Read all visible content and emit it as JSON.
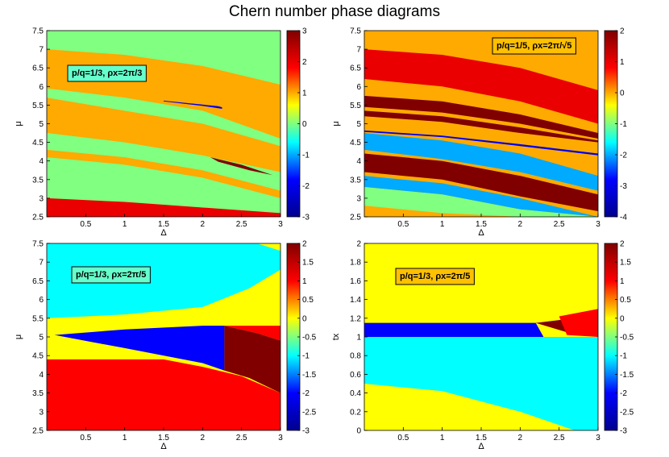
{
  "title": "Chern number phase diagrams",
  "colormap_stops": [
    "#00008f",
    "#0000ff",
    "#00ffff",
    "#ffff00",
    "#ff0000",
    "#800000"
  ],
  "chart_data": [
    {
      "type": "heatmap",
      "panel": "top-left",
      "annotation": "p/q=1/3, ρx=2π/3",
      "xlabel": "Δ",
      "ylabel": "μ",
      "xlim": [
        0,
        3
      ],
      "ylim": [
        2.5,
        7.5
      ],
      "xticks": [
        0.5,
        1,
        1.5,
        2,
        2.5,
        3
      ],
      "yticks": [
        2.5,
        3,
        3.5,
        4,
        4.5,
        5,
        5.5,
        6,
        6.5,
        7,
        7.5
      ],
      "clim": [
        -3,
        3
      ],
      "cticks": [
        -3,
        -2,
        -1,
        0,
        1,
        2,
        3
      ],
      "background_value": 0,
      "regions": [
        {
          "value": 1,
          "top": [
            [
              0,
              7.0
            ],
            [
              1,
              6.85
            ],
            [
              2,
              6.55
            ],
            [
              3,
              6.05
            ]
          ],
          "bottom": [
            [
              0,
              5.95
            ],
            [
              1,
              5.7
            ],
            [
              2,
              5.35
            ],
            [
              3,
              4.6
            ]
          ]
        },
        {
          "value": 1,
          "top": [
            [
              0,
              5.7
            ],
            [
              1,
              5.35
            ],
            [
              2,
              5.0
            ],
            [
              3,
              4.4
            ]
          ],
          "bottom": [
            [
              0,
              4.75
            ],
            [
              1,
              4.5
            ],
            [
              2,
              4.15
            ],
            [
              3,
              3.7
            ]
          ]
        },
        {
          "value": 1,
          "top": [
            [
              0,
              4.3
            ],
            [
              1,
              4.1
            ],
            [
              2,
              3.75
            ],
            [
              3,
              3.2
            ]
          ],
          "bottom": [
            [
              0,
              4.1
            ],
            [
              1,
              3.9
            ],
            [
              2,
              3.55
            ],
            [
              3,
              3.0
            ]
          ]
        },
        {
          "value": 2,
          "top": [
            [
              0,
              3.0
            ],
            [
              1,
              2.9
            ],
            [
              2,
              2.75
            ],
            [
              3,
              2.6
            ]
          ],
          "bottom": [
            [
              0,
              2.5
            ],
            [
              3,
              2.5
            ]
          ]
        },
        {
          "value": -2,
          "top": [
            [
              1.5,
              5.62
            ],
            [
              2.2,
              5.47
            ],
            [
              2.25,
              5.44
            ]
          ],
          "bottom": [
            [
              1.5,
              5.6
            ],
            [
              2.0,
              5.48
            ],
            [
              2.25,
              5.4
            ]
          ]
        },
        {
          "value": 3,
          "top": [
            [
              2.1,
              4.1
            ],
            [
              2.5,
              3.9
            ],
            [
              2.9,
              3.62
            ]
          ],
          "bottom": [
            [
              2.2,
              3.98
            ],
            [
              2.6,
              3.75
            ],
            [
              2.9,
              3.62
            ]
          ]
        }
      ]
    },
    {
      "type": "heatmap",
      "panel": "top-right",
      "annotation": "p/q=1/5, ρx=2π/√5",
      "xlabel": "Δ",
      "ylabel": "μ",
      "xlim": [
        0,
        3
      ],
      "ylim": [
        2.5,
        7.5
      ],
      "xticks": [
        0.5,
        1,
        1.5,
        2,
        2.5,
        3
      ],
      "yticks": [
        2.5,
        3,
        3.5,
        4,
        4.5,
        5,
        5.5,
        6,
        6.5,
        7,
        7.5
      ],
      "clim": [
        -4,
        2
      ],
      "cticks": [
        -4,
        -3,
        -2,
        -1,
        0,
        1,
        2
      ],
      "background_value": 0,
      "regions": [
        {
          "value": 1,
          "top": [
            [
              0,
              7.0
            ],
            [
              1,
              6.85
            ],
            [
              2,
              6.5
            ],
            [
              3,
              5.9
            ]
          ],
          "bottom": [
            [
              0,
              6.2
            ],
            [
              1,
              6.0
            ],
            [
              2,
              5.6
            ],
            [
              3,
              5.0
            ]
          ]
        },
        {
          "value": 2,
          "top": [
            [
              0,
              5.75
            ],
            [
              1,
              5.6
            ],
            [
              2,
              5.25
            ],
            [
              3,
              4.75
            ]
          ],
          "bottom": [
            [
              0,
              5.45
            ],
            [
              1,
              5.3
            ],
            [
              2,
              5.0
            ],
            [
              3,
              4.6
            ]
          ]
        },
        {
          "value": 2,
          "top": [
            [
              0,
              5.35
            ],
            [
              1,
              5.2
            ],
            [
              2,
              4.9
            ],
            [
              3,
              4.55
            ]
          ],
          "bottom": [
            [
              0,
              5.2
            ],
            [
              1,
              5.05
            ],
            [
              2,
              4.75
            ],
            [
              3,
              4.5
            ]
          ]
        },
        {
          "value": -2,
          "top": [
            [
              0,
              4.75
            ],
            [
              1,
              4.55
            ],
            [
              2,
              4.2
            ],
            [
              3,
              3.6
            ]
          ],
          "bottom": [
            [
              0,
              4.3
            ],
            [
              1,
              4.05
            ],
            [
              2,
              3.7
            ],
            [
              3,
              3.2
            ]
          ]
        },
        {
          "value": -3,
          "top": [
            [
              0,
              4.82
            ],
            [
              1,
              4.68
            ],
            [
              2,
              4.45
            ],
            [
              3,
              4.2
            ]
          ],
          "bottom": [
            [
              0,
              4.78
            ],
            [
              1,
              4.64
            ],
            [
              2,
              4.4
            ],
            [
              3,
              4.15
            ]
          ]
        },
        {
          "value": 2,
          "top": [
            [
              0,
              4.2
            ],
            [
              1,
              4.0
            ],
            [
              2,
              3.6
            ],
            [
              3,
              3.1
            ]
          ],
          "bottom": [
            [
              0,
              3.7
            ],
            [
              1,
              3.5
            ],
            [
              2,
              3.05
            ],
            [
              3,
              2.65
            ]
          ]
        },
        {
          "value": -2,
          "top": [
            [
              0,
              3.6
            ],
            [
              1,
              3.4
            ],
            [
              2,
              3.0
            ],
            [
              3,
              2.5
            ]
          ],
          "bottom": [
            [
              0,
              3.3
            ],
            [
              1,
              3.1
            ],
            [
              2,
              2.7
            ],
            [
              3,
              2.5
            ]
          ]
        },
        {
          "value": -1,
          "top": [
            [
              0,
              3.3
            ],
            [
              1,
              3.1
            ],
            [
              2,
              2.7
            ],
            [
              3,
              2.5
            ]
          ],
          "bottom": [
            [
              0,
              2.8
            ],
            [
              1,
              2.6
            ],
            [
              2,
              2.5
            ],
            [
              3,
              2.5
            ]
          ]
        }
      ]
    },
    {
      "type": "heatmap",
      "panel": "bottom-left",
      "annotation": "p/q=1/3, ρx=2π/5",
      "xlabel": "Δ",
      "ylabel": "μ",
      "xlim": [
        0,
        3
      ],
      "ylim": [
        2.5,
        7.5
      ],
      "xticks": [
        0.5,
        1,
        1.5,
        2,
        2.5,
        3
      ],
      "yticks": [
        2.5,
        3,
        3.5,
        4,
        4.5,
        5,
        5.5,
        6,
        6.5,
        7,
        7.5
      ],
      "clim": [
        -3,
        2
      ],
      "cticks": [
        -3,
        -2.5,
        -2,
        -1.5,
        -1,
        -0.5,
        0,
        0.5,
        1,
        1.5,
        2
      ],
      "background_value": 0,
      "regions": [
        {
          "value": -1,
          "top": [
            [
              0,
              7.5
            ],
            [
              2.7,
              7.5
            ],
            [
              3,
              7.3
            ]
          ],
          "bottom": [
            [
              0,
              5.5
            ],
            [
              1,
              5.6
            ],
            [
              2,
              5.8
            ],
            [
              2.6,
              6.3
            ],
            [
              3,
              6.8
            ]
          ]
        },
        {
          "value": 1,
          "top": [
            [
              0,
              4.4
            ],
            [
              1.5,
              4.4
            ],
            [
              2,
              4.2
            ],
            [
              2.5,
              3.95
            ],
            [
              3,
              3.5
            ]
          ],
          "bottom": [
            [
              0,
              2.5
            ],
            [
              3,
              2.5
            ]
          ]
        },
        {
          "value": -2,
          "top": [
            [
              0.1,
              5.05
            ],
            [
              1,
              5.2
            ],
            [
              2,
              5.3
            ],
            [
              2.28,
              5.3
            ]
          ],
          "bottom": [
            [
              0.1,
              5.05
            ],
            [
              1,
              4.7
            ],
            [
              2,
              4.3
            ],
            [
              2.28,
              4.1
            ]
          ]
        },
        {
          "value": 1,
          "top": [
            [
              2.28,
              5.3
            ],
            [
              3,
              5.3
            ]
          ],
          "bottom": [
            [
              2.28,
              5.3
            ],
            [
              2.7,
              5.1
            ],
            [
              3,
              4.9
            ]
          ]
        },
        {
          "value": 2,
          "top": [
            [
              2.28,
              5.3
            ],
            [
              2.7,
              5.1
            ],
            [
              3,
              4.9
            ]
          ],
          "bottom": [
            [
              2.28,
              4.1
            ],
            [
              2.6,
              3.9
            ],
            [
              3,
              3.5
            ]
          ]
        }
      ]
    },
    {
      "type": "heatmap",
      "panel": "bottom-right",
      "annotation": "p/q=1/3, ρx=2π/5",
      "xlabel": "Δ",
      "ylabel": "tx",
      "xlim": [
        0,
        3
      ],
      "ylim": [
        0,
        2
      ],
      "xticks": [
        0.5,
        1,
        1.5,
        2,
        2.5,
        3
      ],
      "yticks": [
        0,
        0.2,
        0.4,
        0.6,
        0.8,
        1,
        1.2,
        1.4,
        1.6,
        1.8,
        2
      ],
      "clim": [
        -3,
        2
      ],
      "cticks": [
        -3,
        -2.5,
        -2,
        -1.5,
        -1,
        -0.5,
        0,
        0.5,
        1,
        1.5,
        2
      ],
      "background_value": 0,
      "regions": [
        {
          "value": -1,
          "top": [
            [
              0,
              1.0
            ],
            [
              1.5,
              1.0
            ],
            [
              3,
              1.0
            ]
          ],
          "bottom": [
            [
              0,
              0.5
            ],
            [
              1,
              0.42
            ],
            [
              2,
              0.2
            ],
            [
              2.7,
              0
            ],
            [
              3,
              0
            ]
          ]
        },
        {
          "value": -2,
          "top": [
            [
              0,
              1.15
            ],
            [
              1,
              1.15
            ],
            [
              2.2,
              1.15
            ]
          ],
          "bottom": [
            [
              0,
              1.0
            ],
            [
              2.3,
              1.0
            ]
          ]
        },
        {
          "value": 2,
          "top": [
            [
              2.2,
              1.15
            ],
            [
              2.7,
              1.2
            ],
            [
              3,
              1.3
            ]
          ],
          "bottom": [
            [
              2.2,
              1.15
            ],
            [
              2.6,
              1.05
            ],
            [
              3,
              1.0
            ]
          ]
        },
        {
          "value": 1,
          "top": [
            [
              2.5,
              1.22
            ],
            [
              3,
              1.3
            ]
          ],
          "bottom": [
            [
              2.6,
              1.02
            ],
            [
              3,
              1.0
            ]
          ]
        }
      ]
    }
  ]
}
